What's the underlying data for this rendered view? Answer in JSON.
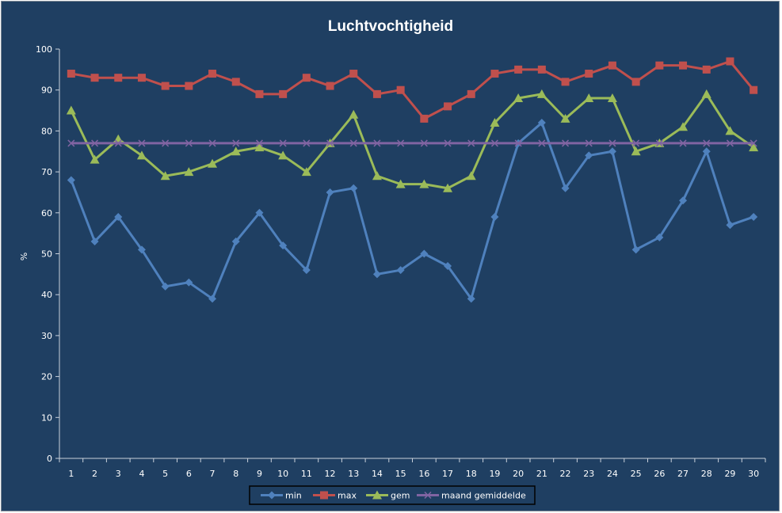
{
  "chart_data": {
    "type": "line",
    "title": "Luchtvochtigheid",
    "xlabel": "",
    "ylabel": "%",
    "ylim": [
      0,
      100
    ],
    "yticks": [
      0,
      10,
      20,
      30,
      40,
      50,
      60,
      70,
      80,
      90,
      100
    ],
    "categories": [
      "1",
      "2",
      "3",
      "4",
      "5",
      "6",
      "7",
      "8",
      "9",
      "10",
      "11",
      "12",
      "13",
      "14",
      "15",
      "16",
      "17",
      "18",
      "19",
      "20",
      "21",
      "22",
      "23",
      "24",
      "25",
      "26",
      "27",
      "28",
      "29",
      "30"
    ],
    "grid": false,
    "legend_position": "bottom",
    "series": [
      {
        "name": "min",
        "color": "#4f81bd",
        "marker": "diamond",
        "values": [
          68,
          53,
          59,
          51,
          42,
          43,
          39,
          53,
          60,
          52,
          46,
          65,
          66,
          45,
          46,
          50,
          47,
          39,
          59,
          77,
          82,
          66,
          74,
          75,
          51,
          54,
          63,
          75,
          57,
          59
        ]
      },
      {
        "name": "max",
        "color": "#c0504d",
        "marker": "square",
        "values": [
          94,
          93,
          93,
          93,
          91,
          91,
          94,
          92,
          89,
          89,
          93,
          91,
          94,
          89,
          90,
          83,
          86,
          89,
          94,
          95,
          95,
          92,
          94,
          96,
          92,
          96,
          96,
          95,
          97,
          90
        ]
      },
      {
        "name": "gem",
        "color": "#9bbb59",
        "marker": "triangle",
        "values": [
          85,
          73,
          78,
          74,
          69,
          70,
          72,
          75,
          76,
          74,
          70,
          77,
          84,
          69,
          67,
          67,
          66,
          69,
          82,
          88,
          89,
          83,
          88,
          88,
          75,
          77,
          81,
          89,
          80,
          76
        ]
      },
      {
        "name": "maand gemiddelde",
        "color": "#8064a2",
        "marker": "x",
        "values": [
          77,
          77,
          77,
          77,
          77,
          77,
          77,
          77,
          77,
          77,
          77,
          77,
          77,
          77,
          77,
          77,
          77,
          77,
          77,
          77,
          77,
          77,
          77,
          77,
          77,
          77,
          77,
          77,
          77,
          77
        ]
      }
    ]
  }
}
